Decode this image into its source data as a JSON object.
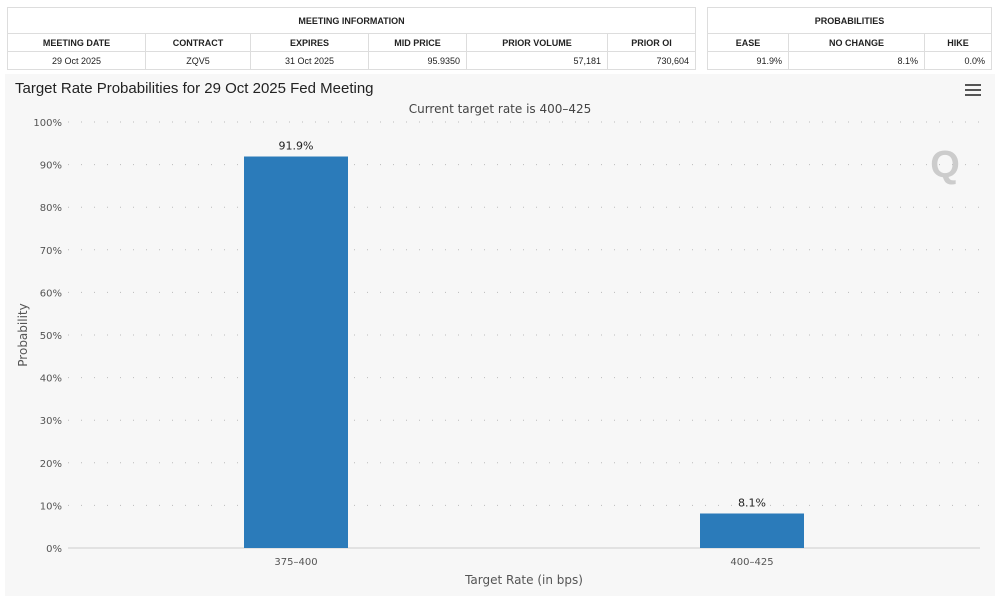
{
  "meeting_info": {
    "title": "MEETING INFORMATION",
    "headers": [
      "MEETING DATE",
      "CONTRACT",
      "EXPIRES",
      "MID PRICE",
      "PRIOR VOLUME",
      "PRIOR OI"
    ],
    "row": [
      "29 Oct 2025",
      "ZQV5",
      "31 Oct 2025",
      "95.9350",
      "57,181",
      "730,604"
    ]
  },
  "probabilities": {
    "title": "PROBABILITIES",
    "headers": [
      "EASE",
      "NO CHANGE",
      "HIKE"
    ],
    "row": [
      "91.9%",
      "8.1%",
      "0.0%"
    ]
  },
  "chart_data": {
    "type": "bar",
    "title": "Target Rate Probabilities for 29 Oct 2025 Fed Meeting",
    "subtitle": "Current target rate is 400–425",
    "xlabel": "Target Rate (in bps)",
    "ylabel": "Probability",
    "categories": [
      "375–400",
      "400–425"
    ],
    "values": [
      91.9,
      8.1
    ],
    "data_labels": [
      "91.9%",
      "8.1%"
    ],
    "ylim": [
      0,
      100
    ],
    "yticks": [
      "0%",
      "10%",
      "20%",
      "30%",
      "40%",
      "50%",
      "60%",
      "70%",
      "80%",
      "90%",
      "100%"
    ],
    "grid": true,
    "bar_color": "#2b7bba"
  }
}
